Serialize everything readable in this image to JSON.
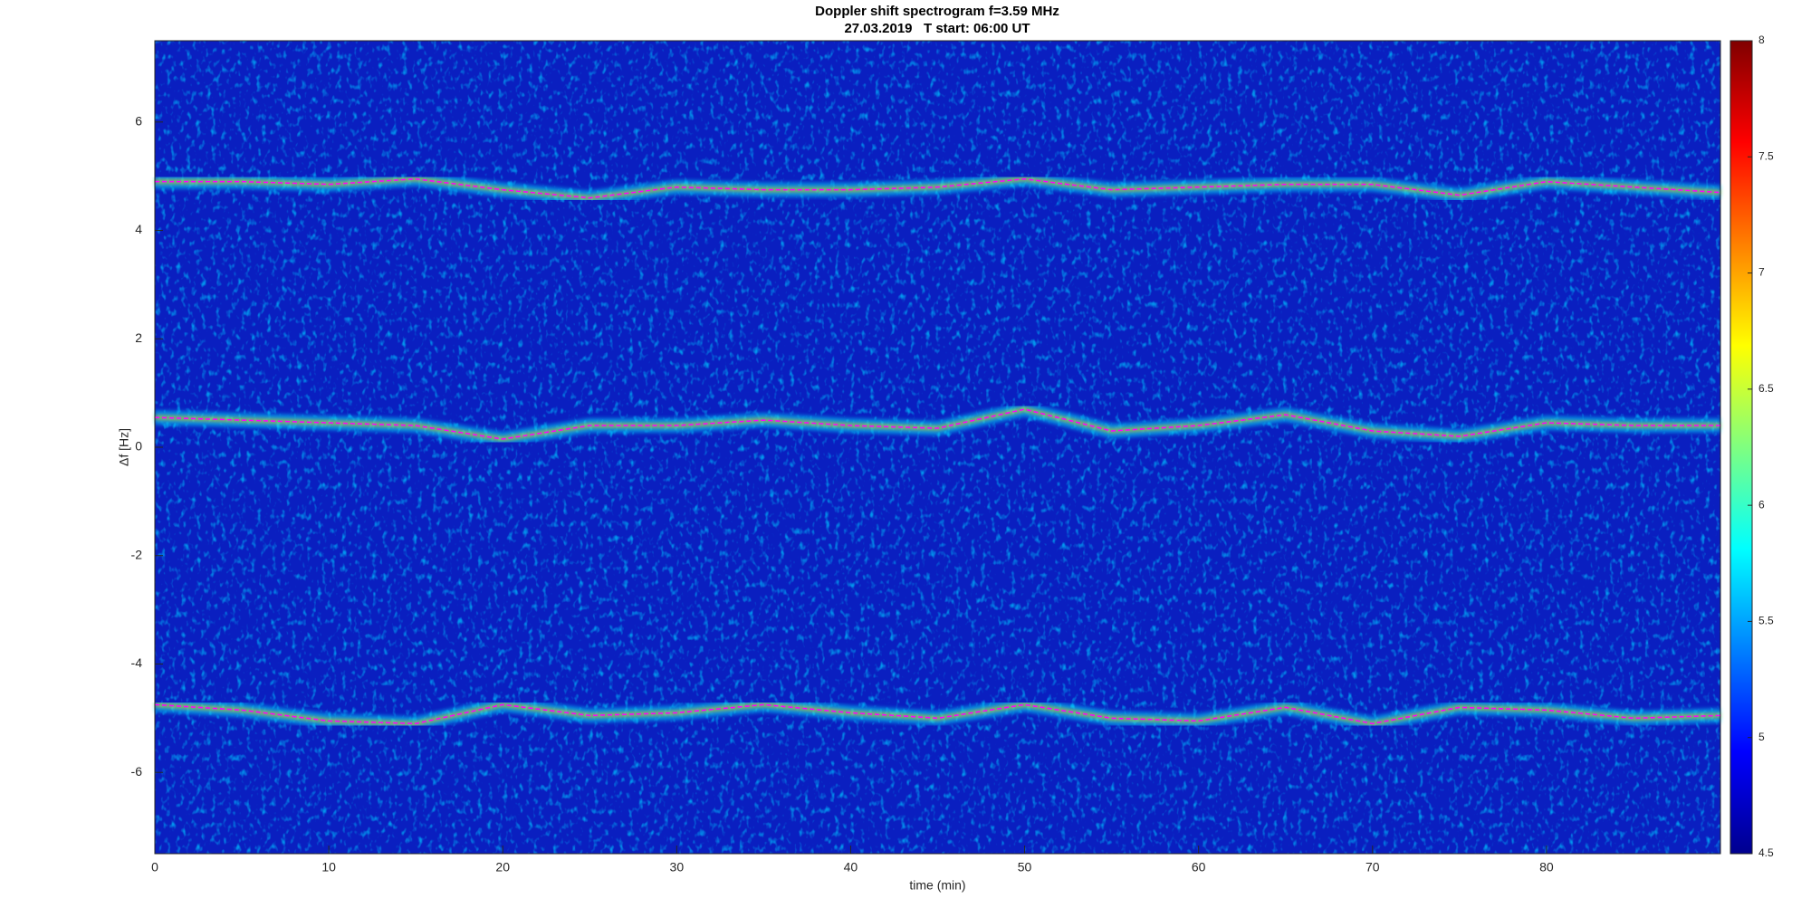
{
  "chart_data": {
    "type": "spectrogram",
    "title": "Doppler shift spectrogram f=3.59 MHz",
    "subtitle": "27.03.2019   T start: 06:00 UT",
    "x_label": "time (min)",
    "y_label": "Δf [Hz]",
    "xlim": [
      0,
      90
    ],
    "xticks": [
      0,
      10,
      20,
      30,
      40,
      50,
      60,
      70,
      80
    ],
    "ylim": [
      -7.5,
      7.5
    ],
    "yticks": [
      -6,
      -4,
      -2,
      0,
      2,
      4,
      6
    ],
    "colormap": "jet",
    "colorbar": {
      "lim": [
        4.5,
        8
      ],
      "ticks": [
        4.5,
        5,
        5.5,
        6,
        6.5,
        7,
        7.5,
        8
      ]
    },
    "x": [
      0,
      5,
      10,
      15,
      20,
      25,
      30,
      35,
      40,
      45,
      50,
      55,
      60,
      65,
      70,
      75,
      80,
      85,
      90
    ],
    "series": [
      {
        "color": "#ff00ff",
        "values": [
          4.9,
          4.9,
          4.85,
          4.95,
          4.75,
          4.6,
          4.8,
          4.75,
          4.75,
          4.8,
          4.95,
          4.75,
          4.8,
          4.85,
          4.85,
          4.65,
          4.9,
          4.8,
          4.7
        ]
      },
      {
        "color": "#ff00ff",
        "values": [
          0.55,
          0.5,
          0.45,
          0.4,
          0.15,
          0.4,
          0.4,
          0.5,
          0.4,
          0.35,
          0.7,
          0.3,
          0.4,
          0.6,
          0.3,
          0.2,
          0.45,
          0.4,
          0.4
        ]
      },
      {
        "color": "#ff00ff",
        "values": [
          -4.75,
          -4.85,
          -5.05,
          -5.1,
          -4.75,
          -4.95,
          -4.9,
          -4.75,
          -4.9,
          -5.0,
          -4.75,
          -5.0,
          -5.05,
          -4.8,
          -5.1,
          -4.8,
          -4.85,
          -5.0,
          -4.95
        ]
      }
    ]
  }
}
